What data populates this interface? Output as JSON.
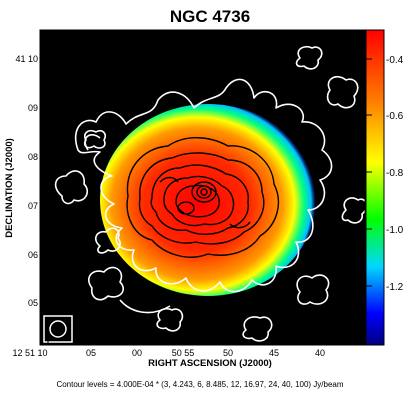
{
  "figure": {
    "title": "NGC 4736",
    "x_axis_label": "RIGHT ASCENSION (J2000)",
    "y_axis_label": "DECLINATION (J2000)",
    "x_tick_labels": [
      "12 51 10",
      "05",
      "00",
      "50 55",
      "50",
      "45",
      "40"
    ],
    "y_tick_labels": [
      "41 10",
      "09",
      "08",
      "07",
      "06",
      "05"
    ],
    "colorbar_tick_labels": [
      "-0.4",
      "-0.6",
      "-0.8",
      "-1.0",
      "-1.2"
    ],
    "contour_caption": "Contour levels = 4.000E-04 * (3, 4.243, 6, 8.485, 12, 16.97, 24, 40, 100) Jy/beam",
    "colors": {
      "background": "#000000",
      "outer_contours": "#ffffff",
      "inner_contours": "#000000",
      "colormap": [
        "#ff0000",
        "#ff7a00",
        "#ffff00",
        "#00ff00",
        "#00d8ff",
        "#0000ff",
        "#000080"
      ]
    }
  }
}
